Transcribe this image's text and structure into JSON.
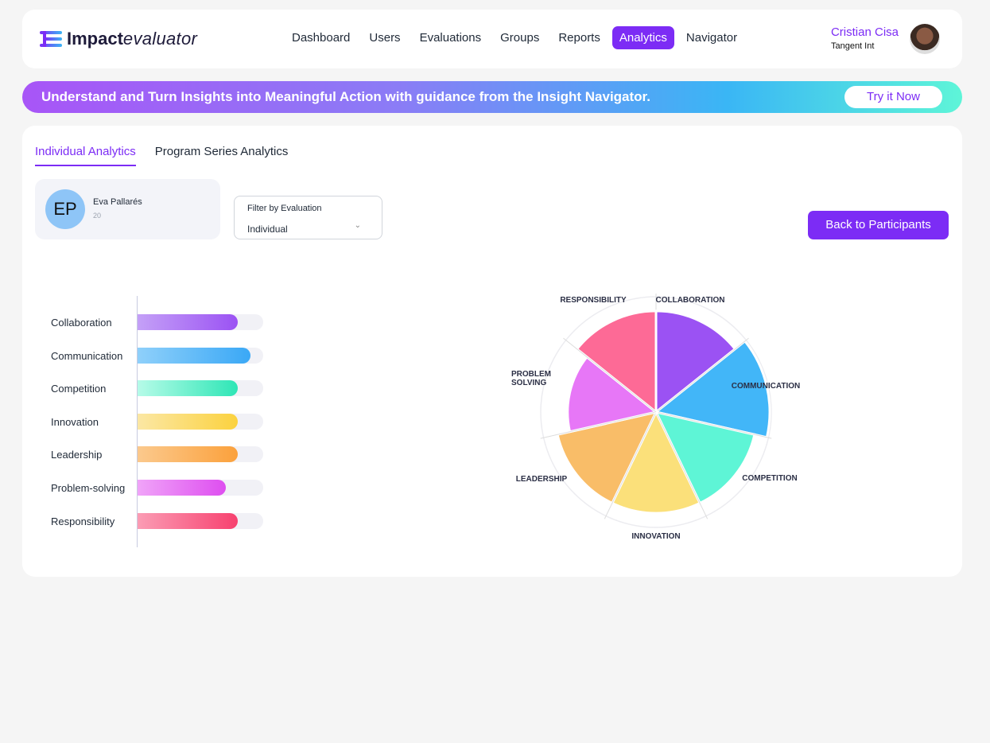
{
  "header": {
    "logo_bold": "Impact",
    "logo_light": "evaluator",
    "nav": [
      "Dashboard",
      "Users",
      "Evaluations",
      "Groups",
      "Reports",
      "Analytics",
      "Navigator"
    ],
    "active_nav": "Analytics",
    "user_name": "Cristian Cisa",
    "user_org": "Tangent Int"
  },
  "banner": {
    "text": "Understand and Turn Insights into Meaningful Action with guidance from the Insight Navigator.",
    "button": "Try it Now"
  },
  "tabs": [
    "Individual Analytics",
    "Program Series Analytics"
  ],
  "participant": {
    "initials": "EP",
    "name": "Eva Pallarés",
    "age": "20"
  },
  "filter": {
    "label": "Filter by Evaluation",
    "value": "Individual"
  },
  "back_button": "Back to Participants",
  "colors": {
    "accent": "#7c2cf5"
  },
  "chart_data": [
    {
      "type": "bar",
      "orientation": "horizontal",
      "categories": [
        "Collaboration",
        "Communication",
        "Competition",
        "Innovation",
        "Leadership",
        "Problem-solving",
        "Responsibility"
      ],
      "values": [
        8,
        9,
        8,
        8,
        8,
        7,
        8
      ],
      "max": 10,
      "colors": [
        [
          "#c4a0f7",
          "#9b52f3"
        ],
        [
          "#8fd0fa",
          "#3aa8f6"
        ],
        [
          "#b6fbe8",
          "#2ee6b6"
        ],
        [
          "#fbe7a4",
          "#fbd23f"
        ],
        [
          "#fbc98d",
          "#fba13c"
        ],
        [
          "#f0a4f8",
          "#de4ef0"
        ],
        [
          "#fb9cb4",
          "#f7416f"
        ]
      ]
    },
    {
      "type": "polar-area",
      "categories": [
        "COLLABORATION",
        "COMMUNICATION",
        "COMPETITION",
        "INNOVATION",
        "LEADERSHIP",
        "PROBLEM SOLVING",
        "RESPONSIBILITY"
      ],
      "values": [
        8,
        9,
        8,
        8,
        8,
        7,
        8
      ],
      "max": 9,
      "colors": [
        "#9b52f3",
        "#42b6f8",
        "#5ef5d6",
        "#fbe07a",
        "#f9bd68",
        "#e777f7",
        "#fd6a96"
      ]
    }
  ]
}
